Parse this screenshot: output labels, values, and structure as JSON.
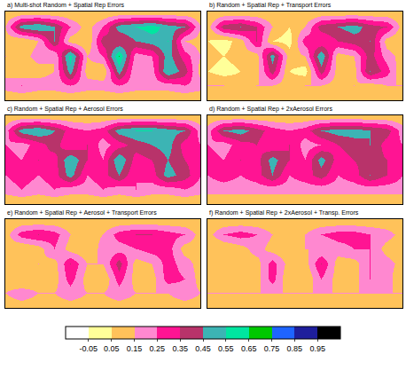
{
  "chart_data": [
    {
      "type": "heatmap",
      "title": "a) Multi-shot Random + Spatial Rep Errors",
      "x": [
        -180,
        -150,
        -120,
        -90,
        -60,
        -30,
        0,
        30,
        60,
        90,
        120,
        150,
        180
      ],
      "y": [
        -90,
        -60,
        -30,
        0,
        30,
        60,
        90
      ],
      "xlim": [
        -180,
        180
      ],
      "ylim": [
        -90,
        90
      ],
      "tick_labels": false,
      "z": [
        [
          0.05,
          0.05,
          0.05,
          0.05,
          0.05,
          0.05,
          0.05,
          0.05,
          0.05,
          0.05,
          0.05,
          0.05,
          0.05
        ],
        [
          0.2,
          0.25,
          0.2,
          0.2,
          0.25,
          0.2,
          0.2,
          0.25,
          0.2,
          0.2,
          0.2,
          0.25,
          0.2
        ],
        [
          0.1,
          0.05,
          0.1,
          0.15,
          0.5,
          0.1,
          0.05,
          0.5,
          0.15,
          0.2,
          0.55,
          0.4,
          0.1
        ],
        [
          0.15,
          0.1,
          0.2,
          0.15,
          0.6,
          0.15,
          0.25,
          0.65,
          0.2,
          0.25,
          0.5,
          0.3,
          0.15
        ],
        [
          0.1,
          0.05,
          0.15,
          0.45,
          0.1,
          0.05,
          0.4,
          0.35,
          0.45,
          0.5,
          0.55,
          0.15,
          0.1
        ],
        [
          0.15,
          0.5,
          0.55,
          0.45,
          0.25,
          0.1,
          0.25,
          0.5,
          0.55,
          0.6,
          0.5,
          0.45,
          0.15
        ],
        [
          0.05,
          0.05,
          0.05,
          0.05,
          0.05,
          0.05,
          0.05,
          0.05,
          0.05,
          0.05,
          0.05,
          0.05,
          0.05
        ]
      ]
    },
    {
      "type": "heatmap",
      "title": "b) Random + Spatial Rep + Transport Errors",
      "x": [
        -180,
        -150,
        -120,
        -90,
        -60,
        -30,
        0,
        30,
        60,
        90,
        120,
        150,
        180
      ],
      "y": [
        -90,
        -60,
        -30,
        0,
        30,
        60,
        90
      ],
      "xlim": [
        -180,
        180
      ],
      "ylim": [
        -90,
        90
      ],
      "tick_labels": false,
      "z": [
        [
          0.05,
          0.05,
          0.05,
          0.05,
          0.05,
          0.05,
          0.05,
          0.05,
          0.05,
          0.05,
          0.05,
          0.05,
          0.05
        ],
        [
          0.15,
          0.15,
          0.1,
          0.15,
          0.15,
          0.1,
          0.15,
          0.15,
          0.1,
          0.15,
          0.1,
          0.15,
          0.15
        ],
        [
          0.05,
          0.0,
          0.05,
          0.1,
          0.4,
          0.05,
          0.0,
          0.4,
          0.1,
          0.1,
          0.45,
          0.3,
          0.05
        ],
        [
          0.1,
          0.05,
          0.1,
          0.1,
          0.5,
          0.1,
          0.15,
          0.55,
          0.1,
          0.15,
          0.4,
          0.2,
          0.1
        ],
        [
          0.05,
          0.0,
          0.1,
          0.35,
          0.05,
          0.0,
          0.3,
          0.25,
          0.35,
          0.4,
          0.45,
          0.1,
          0.05
        ],
        [
          0.1,
          0.4,
          0.45,
          0.35,
          0.15,
          0.05,
          0.15,
          0.4,
          0.45,
          0.5,
          0.4,
          0.35,
          0.1
        ],
        [
          0.05,
          0.05,
          0.05,
          0.05,
          0.05,
          0.05,
          0.05,
          0.05,
          0.05,
          0.05,
          0.05,
          0.05,
          0.05
        ]
      ]
    },
    {
      "type": "heatmap",
      "title": "c) Random + Spatial Rep + Aerosol Errors",
      "x": [
        -180,
        -150,
        -120,
        -90,
        -60,
        -30,
        0,
        30,
        60,
        90,
        120,
        150,
        180
      ],
      "y": [
        -90,
        -60,
        -30,
        0,
        30,
        60,
        90
      ],
      "xlim": [
        -180,
        180
      ],
      "ylim": [
        -90,
        90
      ],
      "tick_labels": false,
      "z": [
        [
          0.05,
          0.05,
          0.05,
          0.05,
          0.05,
          0.05,
          0.05,
          0.05,
          0.05,
          0.05,
          0.05,
          0.05,
          0.05
        ],
        [
          0.2,
          0.25,
          0.2,
          0.25,
          0.2,
          0.2,
          0.25,
          0.2,
          0.25,
          0.2,
          0.2,
          0.25,
          0.2
        ],
        [
          0.25,
          0.3,
          0.25,
          0.3,
          0.5,
          0.25,
          0.3,
          0.45,
          0.25,
          0.3,
          0.5,
          0.4,
          0.25
        ],
        [
          0.3,
          0.25,
          0.35,
          0.3,
          0.55,
          0.35,
          0.25,
          0.55,
          0.3,
          0.35,
          0.45,
          0.35,
          0.3
        ],
        [
          0.25,
          0.2,
          0.3,
          0.4,
          0.25,
          0.35,
          0.2,
          0.3,
          0.4,
          0.45,
          0.5,
          0.3,
          0.25
        ],
        [
          0.2,
          0.5,
          0.55,
          0.45,
          0.3,
          0.25,
          0.3,
          0.5,
          0.55,
          0.55,
          0.5,
          0.45,
          0.2
        ],
        [
          0.05,
          0.05,
          0.05,
          0.05,
          0.05,
          0.05,
          0.05,
          0.05,
          0.05,
          0.05,
          0.05,
          0.05,
          0.05
        ]
      ]
    },
    {
      "type": "heatmap",
      "title": "d) Random + Spatial Rep + 2xAerosol Errors",
      "x": [
        -180,
        -150,
        -120,
        -90,
        -60,
        -30,
        0,
        30,
        60,
        90,
        120,
        150,
        180
      ],
      "y": [
        -90,
        -60,
        -30,
        0,
        30,
        60,
        90
      ],
      "xlim": [
        -180,
        180
      ],
      "ylim": [
        -90,
        90
      ],
      "tick_labels": false,
      "z": [
        [
          0.05,
          0.05,
          0.05,
          0.05,
          0.05,
          0.05,
          0.05,
          0.05,
          0.05,
          0.05,
          0.05,
          0.05,
          0.05
        ],
        [
          0.2,
          0.2,
          0.2,
          0.2,
          0.2,
          0.2,
          0.2,
          0.2,
          0.2,
          0.2,
          0.2,
          0.2,
          0.2
        ],
        [
          0.25,
          0.3,
          0.25,
          0.3,
          0.45,
          0.25,
          0.3,
          0.4,
          0.25,
          0.3,
          0.45,
          0.35,
          0.25
        ],
        [
          0.3,
          0.25,
          0.35,
          0.3,
          0.5,
          0.35,
          0.25,
          0.5,
          0.3,
          0.35,
          0.4,
          0.35,
          0.3
        ],
        [
          0.25,
          0.2,
          0.3,
          0.35,
          0.25,
          0.35,
          0.2,
          0.25,
          0.35,
          0.4,
          0.45,
          0.3,
          0.25
        ],
        [
          0.2,
          0.45,
          0.5,
          0.4,
          0.3,
          0.25,
          0.3,
          0.45,
          0.5,
          0.5,
          0.45,
          0.4,
          0.2
        ],
        [
          0.05,
          0.05,
          0.05,
          0.05,
          0.05,
          0.05,
          0.05,
          0.05,
          0.05,
          0.05,
          0.05,
          0.05,
          0.05
        ]
      ]
    },
    {
      "type": "heatmap",
      "title": "e) Random + Spatial Rep + Aerosol + Transport Errors",
      "x": [
        -180,
        -150,
        -120,
        -90,
        -60,
        -30,
        0,
        30,
        60,
        90,
        120,
        150,
        180
      ],
      "y": [
        -90,
        -60,
        -30,
        0,
        30,
        60,
        90
      ],
      "xlim": [
        -180,
        180
      ],
      "ylim": [
        -90,
        90
      ],
      "tick_labels": false,
      "z": [
        [
          0.1,
          0.1,
          0.1,
          0.1,
          0.1,
          0.1,
          0.1,
          0.1,
          0.1,
          0.1,
          0.1,
          0.1,
          0.1
        ],
        [
          0.15,
          0.2,
          0.15,
          0.15,
          0.2,
          0.15,
          0.15,
          0.2,
          0.15,
          0.15,
          0.15,
          0.2,
          0.15
        ],
        [
          0.1,
          0.05,
          0.1,
          0.1,
          0.3,
          0.1,
          0.05,
          0.3,
          0.1,
          0.1,
          0.3,
          0.25,
          0.1
        ],
        [
          0.1,
          0.1,
          0.15,
          0.1,
          0.35,
          0.15,
          0.15,
          0.4,
          0.1,
          0.15,
          0.3,
          0.2,
          0.1
        ],
        [
          0.1,
          0.05,
          0.1,
          0.25,
          0.1,
          0.05,
          0.2,
          0.2,
          0.25,
          0.3,
          0.3,
          0.1,
          0.1
        ],
        [
          0.1,
          0.3,
          0.35,
          0.3,
          0.15,
          0.1,
          0.15,
          0.3,
          0.35,
          0.35,
          0.3,
          0.25,
          0.1
        ],
        [
          0.05,
          0.05,
          0.05,
          0.05,
          0.05,
          0.05,
          0.05,
          0.05,
          0.05,
          0.05,
          0.05,
          0.05,
          0.05
        ]
      ]
    },
    {
      "type": "heatmap",
      "title": "f) Random + Spatial Rep + 2xAerosol + Transp. Errors",
      "x": [
        -180,
        -150,
        -120,
        -90,
        -60,
        -30,
        0,
        30,
        60,
        90,
        120,
        150,
        180
      ],
      "y": [
        -90,
        -60,
        -30,
        0,
        30,
        60,
        90
      ],
      "xlim": [
        -180,
        180
      ],
      "ylim": [
        -90,
        90
      ],
      "tick_labels": false,
      "z": [
        [
          0.1,
          0.1,
          0.1,
          0.1,
          0.1,
          0.1,
          0.1,
          0.1,
          0.1,
          0.1,
          0.1,
          0.1,
          0.1
        ],
        [
          0.15,
          0.15,
          0.15,
          0.15,
          0.15,
          0.15,
          0.15,
          0.15,
          0.15,
          0.15,
          0.15,
          0.15,
          0.15
        ],
        [
          0.05,
          0.05,
          0.1,
          0.1,
          0.3,
          0.05,
          0.05,
          0.25,
          0.1,
          0.1,
          0.25,
          0.2,
          0.05
        ],
        [
          0.1,
          0.05,
          0.1,
          0.1,
          0.3,
          0.1,
          0.1,
          0.35,
          0.1,
          0.1,
          0.25,
          0.2,
          0.1
        ],
        [
          0.05,
          0.05,
          0.1,
          0.2,
          0.1,
          0.05,
          0.15,
          0.15,
          0.2,
          0.25,
          0.25,
          0.1,
          0.05
        ],
        [
          0.1,
          0.25,
          0.3,
          0.25,
          0.15,
          0.1,
          0.15,
          0.25,
          0.3,
          0.3,
          0.25,
          0.2,
          0.1
        ],
        [
          0.05,
          0.05,
          0.05,
          0.05,
          0.05,
          0.05,
          0.05,
          0.05,
          0.05,
          0.05,
          0.05,
          0.05,
          0.05
        ]
      ]
    }
  ],
  "colorbar": {
    "range": [
      -0.15,
      1.05
    ],
    "ticks": [
      -0.05,
      0.05,
      0.15,
      0.25,
      0.35,
      0.45,
      0.55,
      0.65,
      0.75,
      0.85,
      0.95
    ],
    "colors": [
      "#ffffff",
      "#ffff99",
      "#ffc25a",
      "#ff88d0",
      "#ff1493",
      "#b8336a",
      "#3cb4b4",
      "#00e6a0",
      "#00c800",
      "#1e64ff",
      "#1e1e9c",
      "#000000"
    ]
  }
}
